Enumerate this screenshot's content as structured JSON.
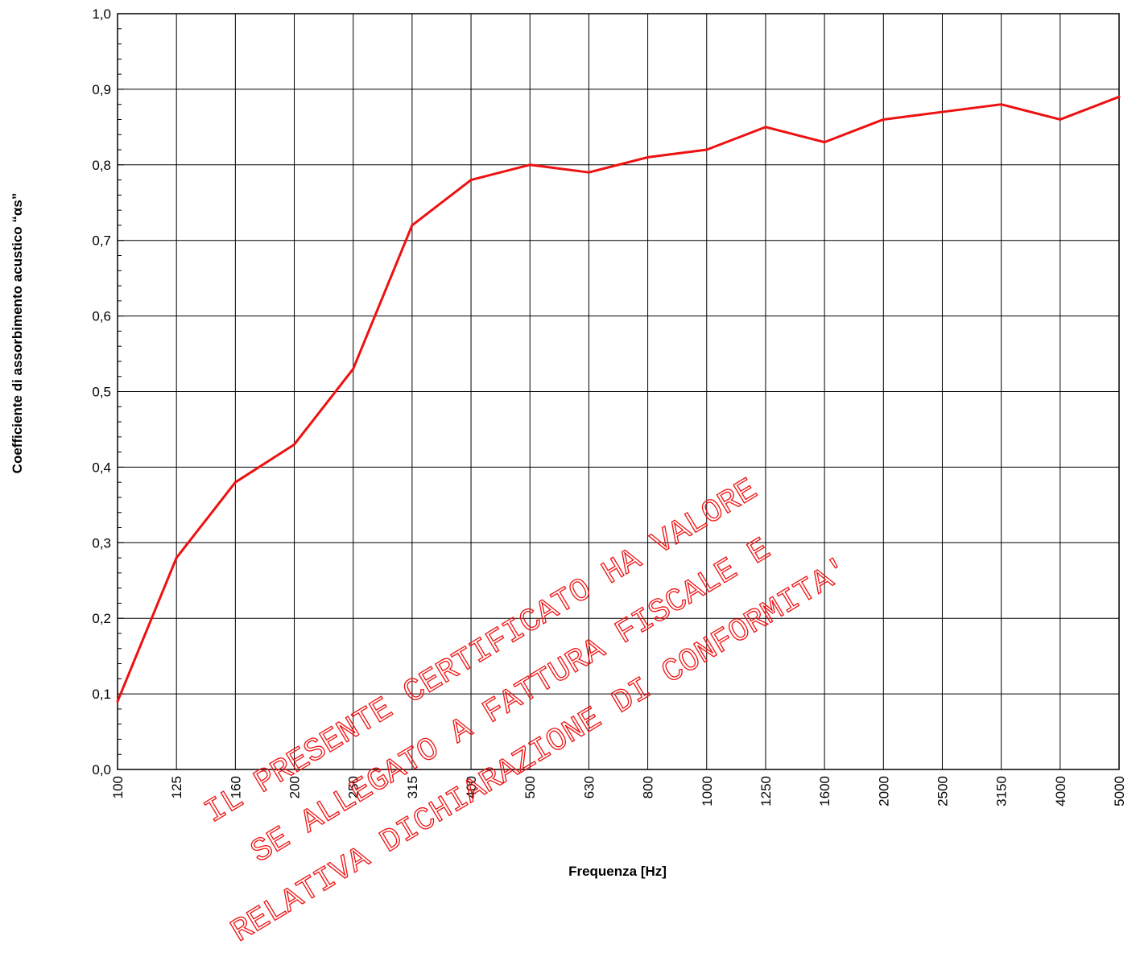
{
  "chart_data": {
    "type": "line",
    "xlabel": "Frequenza [Hz]",
    "ylabel": "Coefficiente di assorbimento acustico “αs”",
    "categories": [
      "100",
      "125",
      "160",
      "200",
      "250",
      "315",
      "400",
      "500",
      "630",
      "800",
      "1000",
      "1250",
      "1600",
      "2000",
      "2500",
      "3150",
      "4000",
      "5000"
    ],
    "series": [
      {
        "values": [
          0.09,
          0.28,
          0.38,
          0.43,
          0.53,
          0.72,
          0.78,
          0.8,
          0.79,
          0.81,
          0.82,
          0.85,
          0.83,
          0.86,
          0.87,
          0.88,
          0.86,
          0.89
        ]
      }
    ],
    "ylim": [
      0.0,
      1.0
    ],
    "yticks": [
      "0,0",
      "0,1",
      "0,2",
      "0,3",
      "0,4",
      "0,5",
      "0,6",
      "0,7",
      "0,8",
      "0,9",
      "1,0"
    ],
    "grid": true,
    "line_color": "#ee1111"
  },
  "watermark": {
    "lines": [
      "IL PRESENTE CERTIFICATO HA VALORE",
      "SE ALLEGATO A FATTURA FISCALE E",
      "RELATIVA DICHIARAZIONE DI CONFORMITA'"
    ],
    "color": "#ee1111"
  }
}
